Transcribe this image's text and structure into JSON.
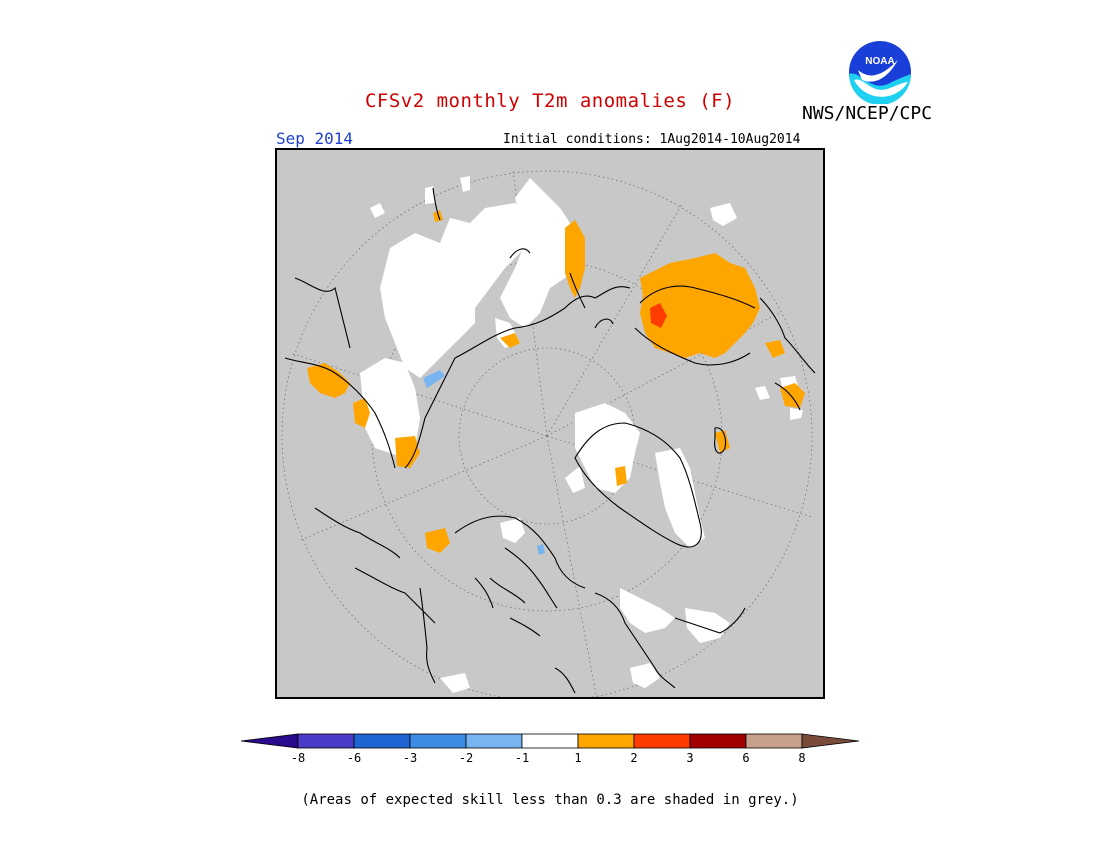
{
  "title": "CFSv2 monthly T2m anomalies (F)",
  "org": "NWS/NCEP/CPC",
  "logo_text": "NOAA",
  "month": "Sep 2014",
  "initial_conditions": "Initial conditions: 1Aug2014-10Aug2014",
  "footnote": "(Areas of expected skill less than 0.3 are shaded in grey.)",
  "colors": {
    "background_grey": "#c8c8c8",
    "near_normal": "#ffffff",
    "warm_1_2": "#ffa500",
    "warm_2_3": "#ff3c00",
    "cool_1_2": "#78b4f0",
    "title": "#d00000",
    "month": "#1f3fd0"
  },
  "colorbar": {
    "labels": [
      "-8",
      "-6",
      "-3",
      "-2",
      "-1",
      "1",
      "2",
      "3",
      "6",
      "8"
    ],
    "colors": [
      "#2a0a8c",
      "#4a3cc8",
      "#1e64d2",
      "#3c8ce6",
      "#78b4f0",
      "#ffffff",
      "#ffa500",
      "#ff3c00",
      "#a00000",
      "#c8a08c",
      "#7a4a3a"
    ]
  }
}
